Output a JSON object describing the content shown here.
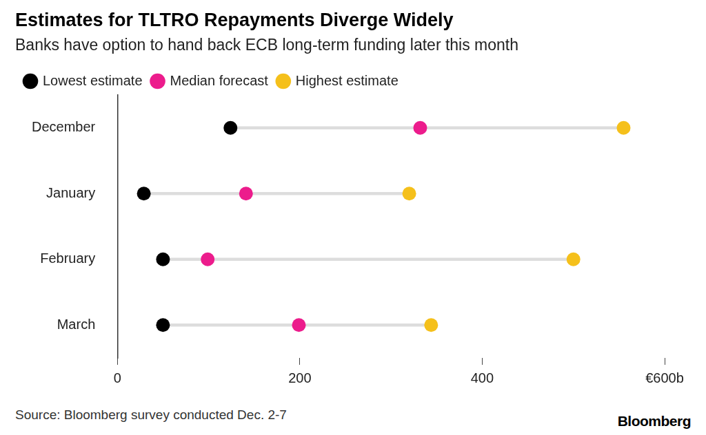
{
  "chart_data": {
    "type": "dumbbell",
    "title": "Estimates for TLTRO Repayments Diverge Widely",
    "subtitle": "Banks have option to hand back ECB long-term funding later this month",
    "categories": [
      "December",
      "January",
      "February",
      "March"
    ],
    "series": [
      {
        "name": "Lowest estimate",
        "color": "#000000",
        "values": [
          124,
          29,
          50,
          50
        ]
      },
      {
        "name": "Median forecast",
        "color": "#ec1c8c",
        "values": [
          332,
          141,
          99,
          199
        ]
      },
      {
        "name": "Highest estimate",
        "color": "#f5c01b",
        "values": [
          555,
          320,
          500,
          344
        ]
      }
    ],
    "orientation": "horizontal",
    "xlim": [
      0,
      600
    ],
    "xticks": [
      0,
      200,
      400,
      {
        "value": 600,
        "label": "€600b"
      }
    ],
    "grid": false,
    "legend": "top left",
    "source": "Source: Bloomberg survey conducted Dec. 2-7",
    "credit": "Bloomberg"
  }
}
